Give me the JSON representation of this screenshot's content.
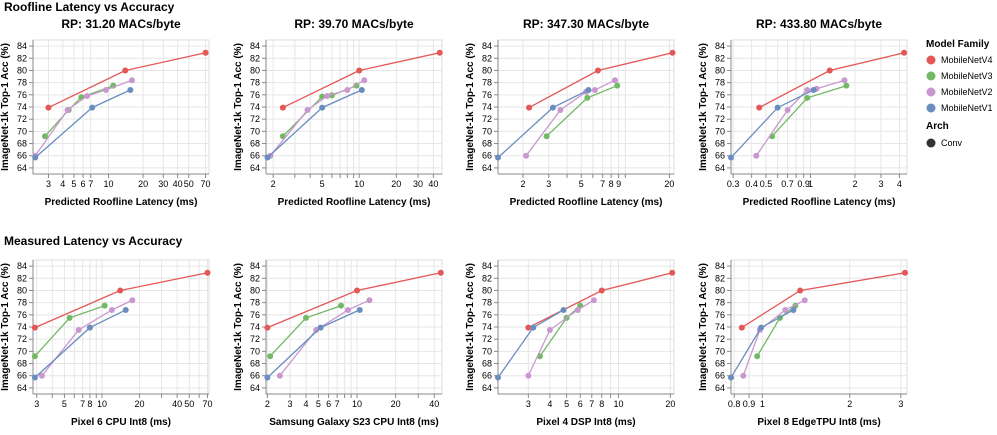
{
  "rows": [
    {
      "title": "Roofline Latency vs Accuracy"
    },
    {
      "title": "Measured Latency vs Accuracy"
    }
  ],
  "legend": {
    "family_title": "Model Family",
    "families": [
      {
        "name": "MobileNetV4",
        "color": "#e45756"
      },
      {
        "name": "MobileNetV3",
        "color": "#72b865"
      },
      {
        "name": "MobileNetV2",
        "color": "#c998d0"
      },
      {
        "name": "MobileNetV1",
        "color": "#6a8dc0"
      }
    ],
    "arch_title": "Arch",
    "arch_items": [
      {
        "name": "Conv"
      }
    ]
  },
  "chart_data": [
    {
      "type": "line",
      "x_scale": "log",
      "title": "RP: 31.20 MACs/byte",
      "xlabel": "Predicted Roofline Latency (ms)",
      "ylabel": "ImageNet-1k Top-1 Acc (%)",
      "xlim": [
        2.2,
        75
      ],
      "ylim": [
        63,
        85
      ],
      "xticks": [
        3,
        4,
        5,
        6,
        7,
        10,
        20,
        30,
        40,
        50,
        70
      ],
      "xtick_labels": [
        "3",
        "4",
        "5",
        "6",
        "7",
        "10",
        "20",
        "30",
        "40",
        "50",
        "70"
      ],
      "yticks": [
        64,
        66,
        68,
        70,
        72,
        74,
        76,
        78,
        80,
        82,
        84
      ],
      "series": [
        {
          "name": "MobileNetV4",
          "x": [
            3.0,
            14.0,
            70.0
          ],
          "y": [
            73.9,
            80.0,
            82.9
          ]
        },
        {
          "name": "MobileNetV3",
          "x": [
            2.8,
            4.5,
            5.8,
            11.0
          ],
          "y": [
            69.2,
            73.5,
            75.6,
            77.5
          ]
        },
        {
          "name": "MobileNetV2",
          "x": [
            2.3,
            4.4,
            6.5,
            9.5,
            16.0
          ],
          "y": [
            66.0,
            73.5,
            75.8,
            76.8,
            78.4
          ]
        },
        {
          "name": "MobileNetV1",
          "x": [
            2.3,
            7.2,
            15.5
          ],
          "y": [
            65.7,
            73.9,
            76.8
          ]
        }
      ]
    },
    {
      "type": "line",
      "x_scale": "log",
      "title": "RP: 39.70 MACs/byte",
      "xlabel": "Predicted Roofline Latency (ms)",
      "ylabel": "ImageNet-1k Top-1 Acc (%)",
      "xlim": [
        1.75,
        47
      ],
      "ylim": [
        63,
        85
      ],
      "xticks": [
        2,
        3,
        4,
        5,
        6,
        7,
        8,
        9,
        10,
        20,
        30,
        40
      ],
      "xtick_labels": [
        "2",
        "",
        "",
        "5",
        "",
        "",
        "",
        "",
        "10",
        "20",
        "30",
        "40"
      ],
      "yticks": [
        64,
        66,
        68,
        70,
        72,
        74,
        76,
        78,
        80,
        82,
        84
      ],
      "series": [
        {
          "name": "MobileNetV4",
          "x": [
            2.4,
            10.0,
            45.0
          ],
          "y": [
            73.9,
            80.0,
            82.9
          ]
        },
        {
          "name": "MobileNetV3",
          "x": [
            2.4,
            5.0,
            6.0,
            9.5
          ],
          "y": [
            69.2,
            75.7,
            75.9,
            77.5
          ]
        },
        {
          "name": "MobileNetV2",
          "x": [
            1.9,
            3.8,
            5.5,
            8.0,
            11.0
          ],
          "y": [
            66.0,
            73.5,
            75.8,
            76.8,
            78.4
          ]
        },
        {
          "name": "MobileNetV1",
          "x": [
            1.8,
            5.0,
            10.5
          ],
          "y": [
            65.7,
            73.9,
            76.8
          ]
        }
      ]
    },
    {
      "type": "line",
      "x_scale": "log",
      "title": "RP: 347.30 MACs/byte",
      "xlabel": "Predicted Roofline Latency (ms)",
      "ylabel": "ImageNet-1k Top-1 Acc (%)",
      "xlim": [
        1.35,
        21.5
      ],
      "ylim": [
        63,
        85
      ],
      "xticks": [
        2,
        3,
        4,
        5,
        6,
        7,
        8,
        9,
        10,
        20
      ],
      "xtick_labels": [
        "2",
        "3",
        "",
        "5",
        "",
        "7",
        "8",
        "9",
        "",
        "20"
      ],
      "yticks": [
        64,
        66,
        68,
        70,
        72,
        74,
        76,
        78,
        80,
        82,
        84
      ],
      "series": [
        {
          "name": "MobileNetV4",
          "x": [
            2.2,
            6.5,
            21.0
          ],
          "y": [
            73.9,
            80.0,
            82.9
          ]
        },
        {
          "name": "MobileNetV3",
          "x": [
            2.9,
            5.5,
            8.8
          ],
          "y": [
            69.2,
            75.5,
            77.5
          ]
        },
        {
          "name": "MobileNetV2",
          "x": [
            2.1,
            3.6,
            5.4,
            6.2,
            8.5
          ],
          "y": [
            66.0,
            73.5,
            76.5,
            76.8,
            78.4
          ]
        },
        {
          "name": "MobileNetV1",
          "x": [
            1.35,
            3.2,
            5.6
          ],
          "y": [
            65.7,
            73.9,
            76.8
          ]
        }
      ]
    },
    {
      "type": "line",
      "x_scale": "log",
      "title": "RP: 433.80 MACs/byte",
      "xlabel": "Predicted Roofline Latency (ms)",
      "ylabel": "ImageNet-1k Top-1 Acc (%)",
      "xlim": [
        0.29,
        4.5
      ],
      "ylim": [
        63,
        85
      ],
      "xticks": [
        0.3,
        0.4,
        0.5,
        0.6,
        0.7,
        0.8,
        0.9,
        1,
        2,
        3,
        4
      ],
      "xtick_labels": [
        "0.3",
        "0.4",
        "0.5",
        "",
        "0.7",
        "",
        "0.9",
        "1",
        "2",
        "3",
        "4"
      ],
      "yticks": [
        64,
        66,
        68,
        70,
        72,
        74,
        76,
        78,
        80,
        82,
        84
      ],
      "series": [
        {
          "name": "MobileNetV4",
          "x": [
            0.45,
            1.35,
            4.3
          ],
          "y": [
            73.9,
            80.0,
            82.9
          ]
        },
        {
          "name": "MobileNetV3",
          "x": [
            0.55,
            0.95,
            1.75
          ],
          "y": [
            69.2,
            75.5,
            77.5
          ]
        },
        {
          "name": "MobileNetV2",
          "x": [
            0.43,
            0.7,
            0.95,
            1.1,
            1.7
          ],
          "y": [
            66.0,
            73.5,
            76.8,
            77.0,
            78.4
          ]
        },
        {
          "name": "MobileNetV1",
          "x": [
            0.29,
            0.6,
            1.05
          ],
          "y": [
            65.7,
            73.9,
            76.8
          ]
        }
      ]
    },
    {
      "type": "line",
      "x_scale": "log",
      "title": "",
      "xlabel": "Pixel 6 CPU Int8 (ms)",
      "ylabel": "ImageNet-1k Top-1 Acc (%)",
      "xlim": [
        2.8,
        72
      ],
      "ylim": [
        63,
        85
      ],
      "xticks": [
        3,
        4,
        5,
        6,
        7,
        8,
        9,
        10,
        20,
        30,
        40,
        50,
        60,
        70
      ],
      "xtick_labels": [
        "3",
        "",
        "5",
        "",
        "7",
        "8",
        "",
        "10",
        "20",
        "",
        "40",
        "50",
        "",
        "70"
      ],
      "yticks": [
        64,
        66,
        68,
        70,
        72,
        74,
        76,
        78,
        80,
        82,
        84
      ],
      "series": [
        {
          "name": "MobileNetV4",
          "x": [
            2.9,
            14.0,
            70.0
          ],
          "y": [
            73.9,
            80.0,
            82.9
          ]
        },
        {
          "name": "MobileNetV3",
          "x": [
            2.9,
            5.5,
            10.5
          ],
          "y": [
            69.2,
            75.5,
            77.5
          ]
        },
        {
          "name": "MobileNetV2",
          "x": [
            3.3,
            6.5,
            12.0,
            17.5
          ],
          "y": [
            66.0,
            73.5,
            76.8,
            78.4
          ]
        },
        {
          "name": "MobileNetV1",
          "x": [
            2.9,
            8.0,
            15.5
          ],
          "y": [
            65.7,
            73.9,
            76.8
          ]
        }
      ]
    },
    {
      "type": "line",
      "x_scale": "log",
      "title": "",
      "xlabel": "Samsung Galaxy S23 CPU Int8 (ms)",
      "ylabel": "ImageNet-1k Top-1 Acc (%)",
      "xlim": [
        1.95,
        46
      ],
      "ylim": [
        63,
        85
      ],
      "xticks": [
        2,
        3,
        4,
        5,
        6,
        7,
        8,
        9,
        10,
        20,
        30,
        40
      ],
      "xtick_labels": [
        "2",
        "3",
        "4",
        "5",
        "6",
        "7",
        "",
        "",
        "10",
        "20",
        "",
        "40"
      ],
      "yticks": [
        64,
        66,
        68,
        70,
        72,
        74,
        76,
        78,
        80,
        82,
        84
      ],
      "series": [
        {
          "name": "MobileNetV4",
          "x": [
            2.0,
            10.0,
            45.0
          ],
          "y": [
            73.9,
            80.0,
            82.9
          ]
        },
        {
          "name": "MobileNetV3",
          "x": [
            2.1,
            4.0,
            7.5
          ],
          "y": [
            69.2,
            75.5,
            77.5
          ]
        },
        {
          "name": "MobileNetV2",
          "x": [
            2.5,
            4.8,
            8.5,
            12.5
          ],
          "y": [
            66.0,
            73.5,
            76.8,
            78.4
          ]
        },
        {
          "name": "MobileNetV1",
          "x": [
            2.0,
            5.2,
            10.5
          ],
          "y": [
            65.7,
            73.9,
            76.8
          ]
        }
      ]
    },
    {
      "type": "line",
      "x_scale": "log",
      "title": "",
      "xlabel": "Pixel 4 DSP Int8 (ms)",
      "ylabel": "ImageNet-1k Top-1 Acc (%)",
      "xlim": [
        2.0,
        21
      ],
      "ylim": [
        63,
        85
      ],
      "xticks": [
        3,
        4,
        5,
        6,
        7,
        8,
        9,
        10,
        20
      ],
      "xtick_labels": [
        "3",
        "4",
        "5",
        "6",
        "7",
        "8",
        "",
        "10",
        "20"
      ],
      "yticks": [
        64,
        66,
        68,
        70,
        72,
        74,
        76,
        78,
        80,
        82,
        84
      ],
      "series": [
        {
          "name": "MobileNetV4",
          "x": [
            3.0,
            8.0,
            20.5
          ],
          "y": [
            73.9,
            80.0,
            82.9
          ]
        },
        {
          "name": "MobileNetV3",
          "x": [
            3.5,
            5.0,
            6.0
          ],
          "y": [
            69.2,
            75.5,
            77.5
          ]
        },
        {
          "name": "MobileNetV2",
          "x": [
            3.0,
            4.0,
            5.8,
            7.2
          ],
          "y": [
            66.0,
            73.5,
            76.8,
            78.4
          ]
        },
        {
          "name": "MobileNetV1",
          "x": [
            2.0,
            3.2,
            4.8
          ],
          "y": [
            65.7,
            73.9,
            76.8
          ]
        }
      ]
    },
    {
      "type": "line",
      "x_scale": "log",
      "title": "",
      "xlabel": "Pixel 8 EdgeTPU Int8 (ms)",
      "ylabel": "ImageNet-1k Top-1 Acc (%)",
      "xlim": [
        0.78,
        3.15
      ],
      "ylim": [
        63,
        85
      ],
      "xticks": [
        0.8,
        0.9,
        1,
        2,
        3
      ],
      "xtick_labels": [
        "0.8",
        "0.9",
        "1",
        "2",
        "3"
      ],
      "yticks": [
        64,
        66,
        68,
        70,
        72,
        74,
        76,
        78,
        80,
        82,
        84
      ],
      "series": [
        {
          "name": "MobileNetV4",
          "x": [
            0.85,
            1.35,
            3.1
          ],
          "y": [
            73.9,
            80.0,
            82.9
          ]
        },
        {
          "name": "MobileNetV3",
          "x": [
            0.96,
            1.15,
            1.3
          ],
          "y": [
            69.2,
            75.5,
            77.5
          ]
        },
        {
          "name": "MobileNetV2",
          "x": [
            0.86,
            0.98,
            1.2,
            1.4
          ],
          "y": [
            66.0,
            73.5,
            76.8,
            78.4
          ]
        },
        {
          "name": "MobileNetV1",
          "x": [
            0.78,
            0.99,
            1.28
          ],
          "y": [
            65.7,
            73.9,
            76.8
          ]
        }
      ]
    }
  ]
}
